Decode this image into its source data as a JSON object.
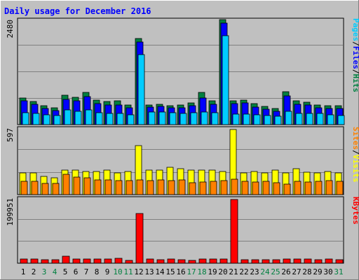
{
  "title": "Daily usage for December 2016",
  "colors": {
    "background": "#c0c0c0",
    "plot_bg": "#c0c0c0",
    "title_text": "#0000ff",
    "grid": "#808080",
    "pages": "#00ccff",
    "files": "#0000ff",
    "hits": "#008040",
    "sites": "#ff8000",
    "visits": "#ffff00",
    "kbytes": "#ff0000",
    "weekend_label": "#008040",
    "weekday_label": "#000000"
  },
  "chart_data": [
    {
      "type": "bar",
      "panel": "hits-files-pages",
      "ymax_label": "2480",
      "ylim": [
        0,
        2480
      ],
      "right_label": {
        "parts": [
          "Pages",
          "/",
          "Files",
          "/",
          "Hits"
        ]
      },
      "categories": [
        "1",
        "2",
        "3",
        "4",
        "5",
        "6",
        "7",
        "8",
        "9",
        "10",
        "11",
        "12",
        "13",
        "14",
        "15",
        "16",
        "17",
        "18",
        "19",
        "20",
        "21",
        "22",
        "23",
        "24",
        "25",
        "26",
        "27",
        "28",
        "29",
        "30",
        "31"
      ],
      "series": [
        {
          "name": "Hits",
          "values": [
            640,
            550,
            450,
            400,
            700,
            650,
            760,
            580,
            550,
            570,
            460,
            2050,
            470,
            490,
            450,
            460,
            510,
            760,
            560,
            2490,
            570,
            590,
            500,
            430,
            380,
            780,
            560,
            530,
            470,
            450,
            450
          ]
        },
        {
          "name": "Files",
          "values": [
            560,
            480,
            380,
            330,
            600,
            560,
            660,
            500,
            470,
            460,
            400,
            1960,
            410,
            430,
            400,
            400,
            450,
            640,
            480,
            2410,
            500,
            510,
            420,
            360,
            320,
            690,
            480,
            470,
            400,
            390,
            390
          ]
        },
        {
          "name": "Pages",
          "values": [
            280,
            260,
            230,
            210,
            350,
            310,
            350,
            280,
            260,
            270,
            240,
            1670,
            300,
            300,
            290,
            260,
            290,
            300,
            280,
            2110,
            250,
            250,
            240,
            220,
            200,
            320,
            260,
            260,
            260,
            230,
            220
          ]
        }
      ]
    },
    {
      "type": "bar",
      "panel": "visits-sites",
      "ymax_label": "597",
      "ylim": [
        0,
        597
      ],
      "right_label": {
        "parts": [
          "Sites",
          "/",
          "Visits"
        ]
      },
      "categories": [
        "1",
        "2",
        "3",
        "4",
        "5",
        "6",
        "7",
        "8",
        "9",
        "10",
        "11",
        "12",
        "13",
        "14",
        "15",
        "16",
        "17",
        "18",
        "19",
        "20",
        "21",
        "22",
        "23",
        "24",
        "25",
        "26",
        "27",
        "28",
        "29",
        "30",
        "31"
      ],
      "series": [
        {
          "name": "Visits",
          "values": [
            200,
            200,
            165,
            150,
            225,
            225,
            210,
            210,
            225,
            200,
            210,
            445,
            225,
            225,
            250,
            235,
            225,
            220,
            225,
            210,
            590,
            200,
            210,
            195,
            225,
            200,
            235,
            205,
            200,
            210,
            200
          ]
        },
        {
          "name": "Sites",
          "values": [
            120,
            120,
            100,
            100,
            185,
            160,
            155,
            135,
            135,
            125,
            130,
            135,
            130,
            135,
            130,
            135,
            110,
            115,
            120,
            130,
            140,
            120,
            115,
            120,
            110,
            95,
            120,
            115,
            120,
            125,
            120
          ]
        }
      ]
    },
    {
      "type": "bar",
      "panel": "kbytes",
      "ymax_label": "199951",
      "ylim": [
        0,
        199951
      ],
      "right_label": {
        "parts": [
          "KBytes"
        ]
      },
      "categories": [
        "1",
        "2",
        "3",
        "4",
        "5",
        "6",
        "7",
        "8",
        "9",
        "10",
        "11",
        "12",
        "13",
        "14",
        "15",
        "16",
        "17",
        "18",
        "19",
        "20",
        "21",
        "22",
        "23",
        "24",
        "25",
        "26",
        "27",
        "28",
        "29",
        "30",
        "31"
      ],
      "series": [
        {
          "name": "KBytes",
          "values": [
            12000,
            12000,
            11000,
            10000,
            22000,
            12000,
            14000,
            14000,
            12000,
            16000,
            8000,
            155000,
            14000,
            11000,
            12000,
            11000,
            8000,
            12000,
            12000,
            12000,
            198000,
            11000,
            11000,
            11000,
            10000,
            14000,
            12000,
            12000,
            11000,
            12000,
            11000
          ]
        }
      ]
    }
  ],
  "x_axis": {
    "labels": [
      "1",
      "2",
      "3",
      "4",
      "5",
      "6",
      "7",
      "8",
      "9",
      "10",
      "11",
      "12",
      "13",
      "14",
      "15",
      "16",
      "17",
      "18",
      "19",
      "20",
      "21",
      "22",
      "23",
      "24",
      "25",
      "26",
      "27",
      "28",
      "29",
      "30",
      "31"
    ],
    "weekend": [
      false,
      false,
      true,
      true,
      false,
      false,
      false,
      false,
      false,
      true,
      true,
      false,
      false,
      false,
      false,
      false,
      true,
      true,
      false,
      false,
      false,
      false,
      false,
      true,
      true,
      false,
      false,
      false,
      false,
      false,
      true
    ]
  }
}
